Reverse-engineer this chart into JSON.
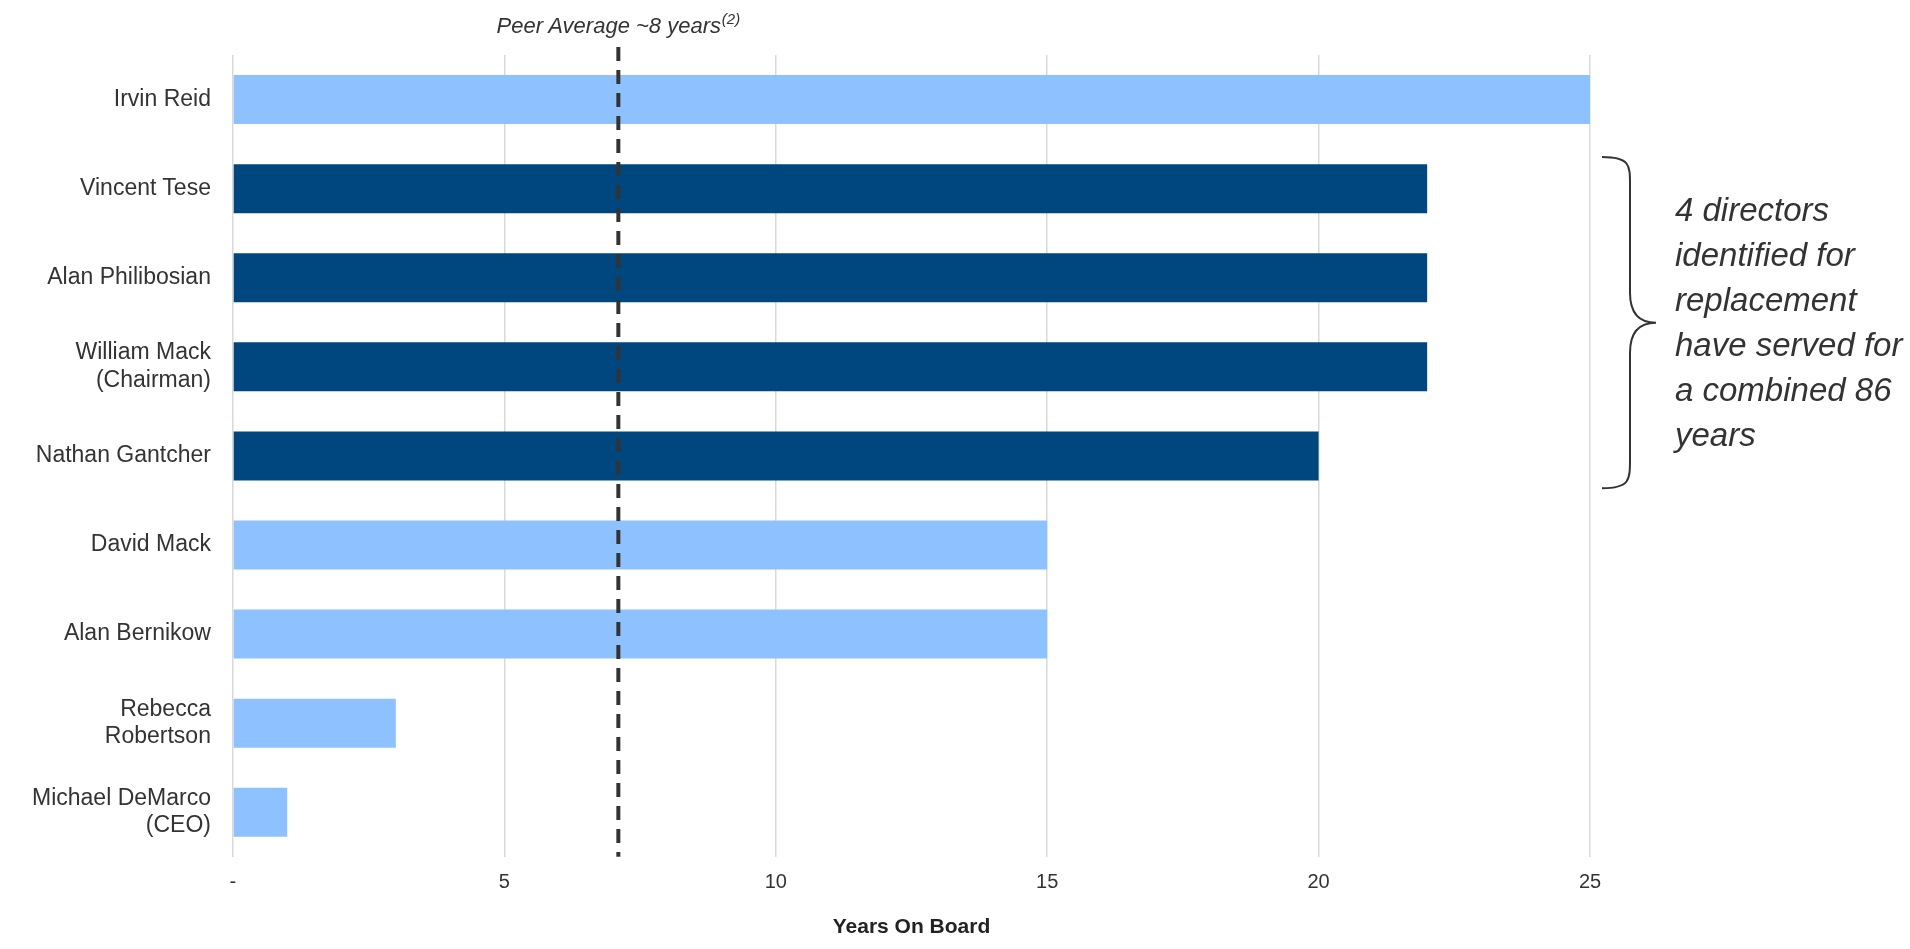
{
  "chart_data": {
    "type": "bar",
    "orientation": "horizontal",
    "xlabel": "Years On Board",
    "categories": [
      "Irvin Reid",
      "Vincent Tese",
      "Alan Philibosian",
      "William Mack (Chairman)",
      "Nathan Gantcher",
      "David Mack",
      "Alan Bernikow",
      "Rebecca Robertson",
      "Michael DeMarco (CEO)"
    ],
    "values": [
      25,
      22,
      22,
      22,
      20,
      15,
      15,
      3,
      1
    ],
    "colors": [
      "#8ec1ff",
      "#00467f",
      "#00467f",
      "#00467f",
      "#00467f",
      "#8ec1ff",
      "#8ec1ff",
      "#8ec1ff",
      "#8ec1ff"
    ],
    "xlim": [
      0,
      25
    ],
    "xticks": [
      {
        "value": 0,
        "label": "-"
      },
      5,
      10,
      15,
      20,
      25
    ],
    "grid": "x",
    "legend": false,
    "ref_lines": [
      {
        "axis": "x",
        "value": 7.1,
        "label": "Peer Average ~8 years$^{(2)}$",
        "color": "#333333",
        "line_style": "dashed"
      }
    ],
    "annotations": [
      "4 directors identified for replacement have served for a combined 86 years"
    ]
  }
}
